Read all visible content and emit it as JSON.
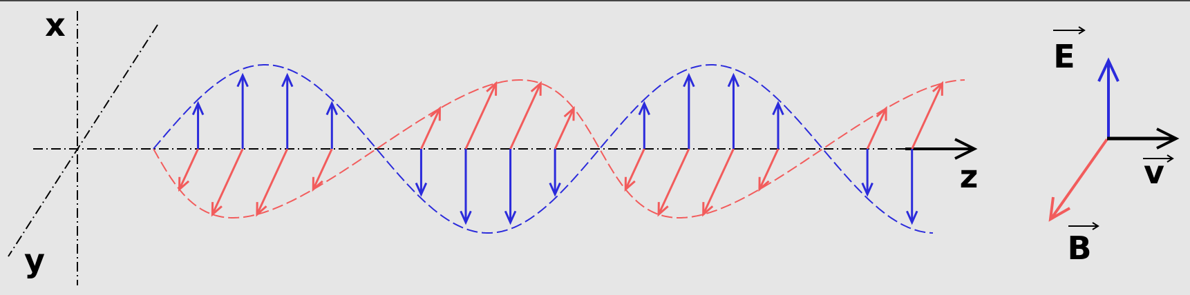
{
  "labels": {
    "x_axis": "x",
    "y_axis": "y",
    "z_axis": "z",
    "electric_field": "E",
    "magnetic_field": "B",
    "velocity": "v"
  },
  "colors": {
    "background": "#e6e6e6",
    "electric": "#2b2bdb",
    "magnetic": "#f25c5c",
    "axis": "#000000"
  },
  "wave": {
    "cycles": 1.75,
    "phase_start_deg": 0,
    "electric_vectors_per_half_cycle": 4,
    "magnetic_vectors_per_half_cycle": 4
  }
}
